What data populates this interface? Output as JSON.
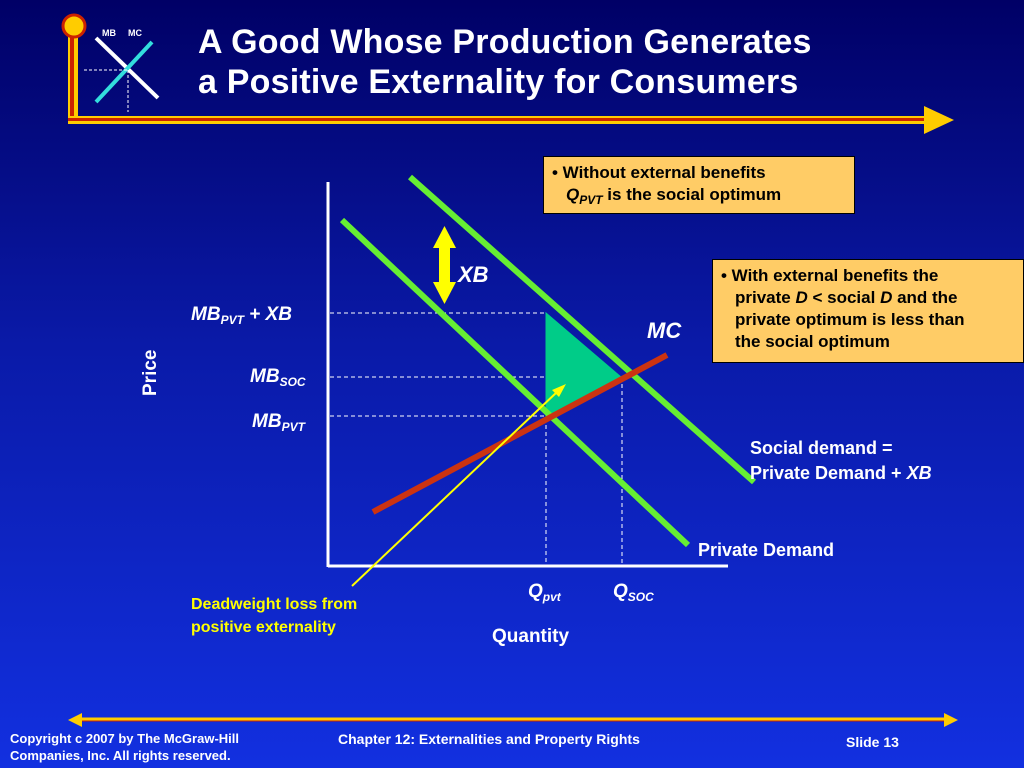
{
  "title": {
    "line1": "A Good Whose Production Generates",
    "line2": "a Positive Externality for Consumers"
  },
  "logo": {
    "label_mb": "MB",
    "label_mc": "MC"
  },
  "callout_top": {
    "line1": "• Without external benefits",
    "q_main": "Q",
    "q_sub": "PVT",
    "line2_rest": " is the social optimum"
  },
  "callout_right": {
    "line1": "• With external benefits the",
    "line2_a": "private ",
    "line2_d1": "D",
    "line2_b": " < social ",
    "line2_d2": "D",
    "line2_c": " and the",
    "line3": "private optimum is less than",
    "line4": "the social optimum"
  },
  "diagram": {
    "y_axis_label": "Price",
    "x_axis_label": "Quantity",
    "xb_label": "XB",
    "mc_label": "MC",
    "mb_pvt_xb": {
      "main": "MB",
      "sub": "PVT",
      "rest": " + XB"
    },
    "mb_soc": {
      "main": "MB",
      "sub": "SOC"
    },
    "mb_pvt": {
      "main": "MB",
      "sub": "PVT"
    },
    "q_pvt": {
      "main": "Q",
      "sub": "pvt"
    },
    "q_soc": {
      "main": "Q",
      "sub": "SOC"
    },
    "social_demand_line1": "Social demand =",
    "social_demand_line2_a": "Private Demand + ",
    "social_demand_line2_b": "XB",
    "private_demand_label": "Private Demand",
    "deadweight_line1": "Deadweight loss from",
    "deadweight_line2": "positive externality"
  },
  "colors": {
    "demand": "#66ee33",
    "mc": "#cc3311",
    "dwl": "#00cc88",
    "arrow": "#ffff00",
    "callout": "#ffcc66",
    "deadweight_text": "#ffff00"
  },
  "footer": {
    "copyright_line1": "Copyright c 2007 by The McGraw-Hill",
    "copyright_line2": "Companies, Inc.  All rights reserved.",
    "chapter": "Chapter 12: Externalities and Property Rights",
    "slide": "Slide 13"
  }
}
